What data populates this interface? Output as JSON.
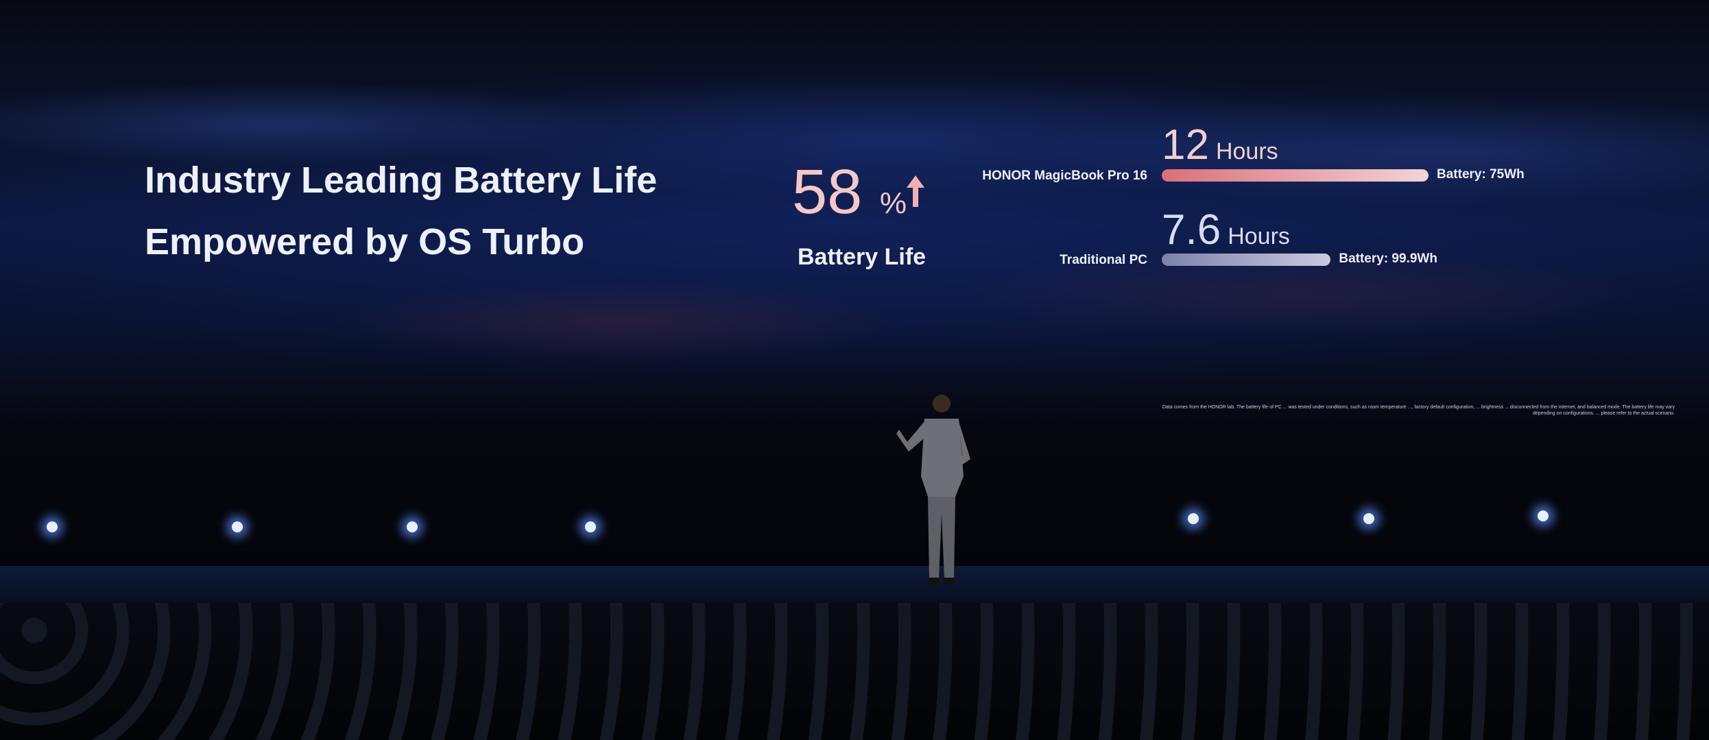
{
  "slide": {
    "title_line1": "Industry Leading Battery Life",
    "title_line2": "Empowered by OS Turbo",
    "stat_value": "58",
    "stat_unit": "%",
    "stat_label": "Battery Life",
    "stat_icon": "arrow-up-icon",
    "comparison": [
      {
        "device": "HONOR MagicBook Pro 16",
        "hours": "12",
        "unit": "Hours",
        "battery": "Battery: 75Wh",
        "value_hours": 12,
        "color": "#e07a80"
      },
      {
        "device": "Traditional PC",
        "hours": "7.6",
        "unit": "Hours",
        "battery": "Battery: 99.9Wh",
        "value_hours": 7.6,
        "color": "#8a8fb8"
      }
    ],
    "footnote": "Data comes from the HONOR lab. The battery life of PC ... was tested under conditions, such as room temperature ..., factory default configuration, ... brightness ... disconnected from the internet, and balanced mode. The battery life may vary depending on configurations. ... please refer to the actual scenario."
  },
  "colors": {
    "accent": "#f4c8c8",
    "background": "#0a1230"
  }
}
